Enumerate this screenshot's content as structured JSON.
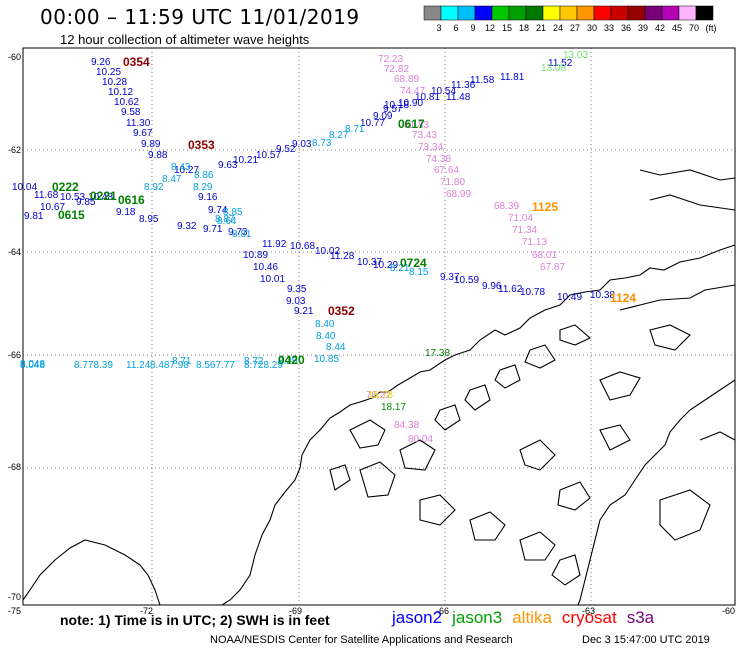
{
  "header": {
    "title": "00:00 – 11:59 UTC 11/01/2019",
    "subtitle": "12 hour collection of altimeter wave heights"
  },
  "colorbar": {
    "colors": [
      "#888888",
      "#00ffff",
      "#00bfff",
      "#0000ff",
      "#00c800",
      "#00a000",
      "#007800",
      "#ffff00",
      "#ffc800",
      "#ff9600",
      "#ff0000",
      "#c80000",
      "#960000",
      "#780078",
      "#b400b4",
      "#ffb4ff",
      "#000000"
    ],
    "labels": [
      "3",
      "6",
      "9",
      "12",
      "15",
      "18",
      "21",
      "24",
      "27",
      "30",
      "33",
      "36",
      "39",
      "42",
      "45",
      "70",
      "(ft)"
    ]
  },
  "axes": {
    "lat_labels": [
      "-60",
      "-62",
      "-64",
      "-66",
      "-68",
      "-70"
    ],
    "lon_labels": [
      "-75",
      "-72",
      "-69",
      "-66",
      "-63",
      "-60"
    ]
  },
  "tracks": {
    "jason2": {
      "labels": [
        "9.26",
        "10.25",
        "10.28",
        "10.12",
        "10.62",
        "9.58",
        "11.30",
        "9.67",
        "9.89",
        "9.88",
        "10.27",
        "9.63",
        "10.21",
        "10.57",
        "9.52",
        "9.03",
        "9.16",
        "9.74",
        "9.71",
        "9.73",
        "11.92",
        "10.89",
        "10.68",
        "10.46",
        "10.01",
        "10.02",
        "11.28",
        "10.37",
        "10.29",
        "9.37",
        "10.59",
        "9.96",
        "11.62",
        "10.78",
        "9.35",
        "9.03",
        "9.21",
        "10.77",
        "9.09",
        "9.57",
        "10.90",
        "10.81",
        "10.54",
        "11.36",
        "11.58",
        "11.52",
        "10.18",
        "11.48",
        "11.81"
      ]
    },
    "jason3": {
      "labels": [
        "0222",
        "0221",
        "0616",
        "0615",
        "0617",
        "0724",
        "0420",
        "17.38"
      ]
    },
    "altika": {
      "labels": [
        "1125",
        "1124",
        "18.78"
      ]
    },
    "cryosat": {
      "labels": [
        "0354",
        "0353",
        "0352"
      ]
    },
    "s3a_values": [
      "72.23",
      "72.82",
      "68.89",
      "74.47",
      "81.83",
      "73.43",
      "73.34",
      "74.38",
      "67.64",
      "71.80",
      "68.99",
      "68.39",
      "71.04",
      "71.34",
      "71.13",
      "68.01",
      "67.87",
      "84.38",
      "80.04",
      "76.22",
      "13.03",
      "13.08",
      "18.17"
    ],
    "cyan_values": [
      "8.73",
      "8.27",
      "8.71",
      "8.92",
      "8.43",
      "8.47",
      "8.86",
      "8.29",
      "8.87",
      "8.85",
      "8.64",
      "8.81",
      "8.21",
      "8.15",
      "8.40",
      "8.40",
      "8.44",
      "8.048",
      "8.72",
      "8.29",
      "8.71"
    ],
    "west_values": [
      "10.04",
      "11.68",
      "10.53",
      "10.67",
      "9.81",
      "9.85",
      "10.48",
      "9.18",
      "9.32",
      "8.95"
    ],
    "bottom_row": [
      "8.048",
      "8.778.39",
      "11.24",
      "8.487.98",
      "8.567.77",
      "8.728.29",
      "10.85"
    ],
    "east_values": [
      "10.49",
      "10.38"
    ]
  },
  "legend": {
    "note": "note: 1) Time is in UTC; 2) SWH is in feet",
    "sats": [
      {
        "name": "jason2",
        "color": "#0000ff"
      },
      {
        "name": "jason3",
        "color": "#00a000"
      },
      {
        "name": "altika",
        "color": "#ff9600"
      },
      {
        "name": "cryosat",
        "color": "#ff0000"
      },
      {
        "name": "s3a",
        "color": "#780078"
      }
    ]
  },
  "credit": "NOAA/NESDIS Center for Satellite Applications and Research",
  "credit_date": "Dec  3 15:47:00 UTC 2019"
}
